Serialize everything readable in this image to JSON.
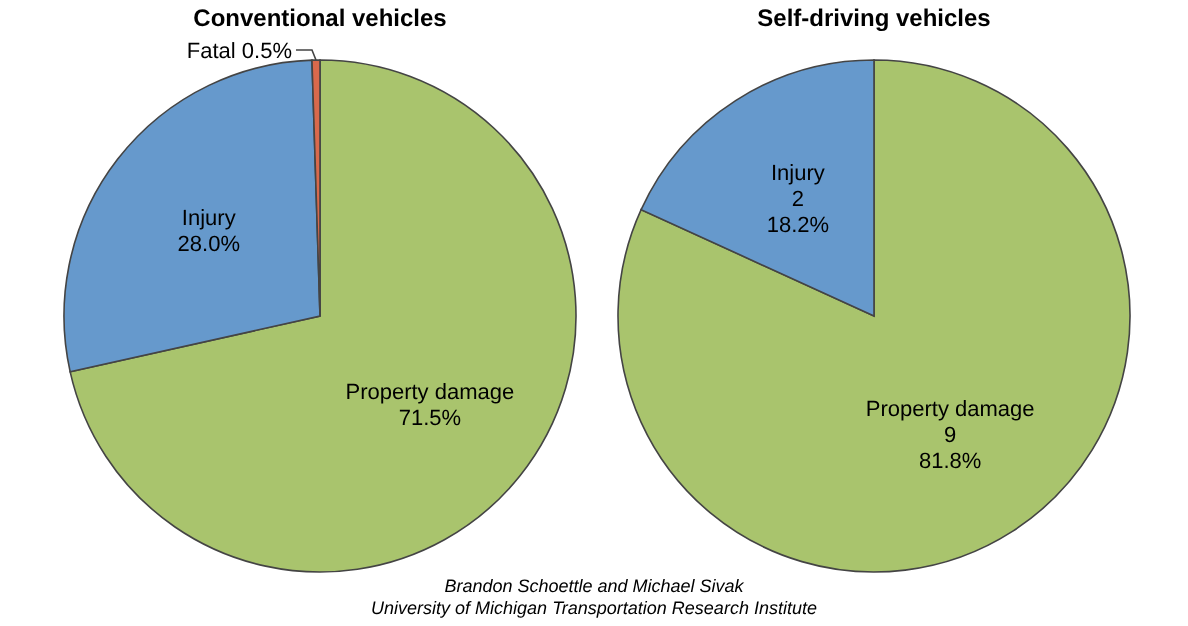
{
  "chart_data": [
    {
      "type": "pie",
      "title": "Conventional vehicles",
      "categories": [
        "Property damage",
        "Injury",
        "Fatal"
      ],
      "values": [
        71.5,
        28.0,
        0.5
      ],
      "colors": [
        "#a9c46d",
        "#6699cc",
        "#d9694c"
      ],
      "value_labels": [
        "71.5%",
        "28.0%",
        "0.5%"
      ],
      "annotations": [
        "Brandon Schoettle and Michael Sivak",
        "University of Michigan Transportation Research Institute"
      ]
    },
    {
      "type": "pie",
      "title": "Self-driving vehicles",
      "categories": [
        "Property damage",
        "Injury"
      ],
      "values": [
        9,
        2
      ],
      "colors": [
        "#a9c46d",
        "#6699cc"
      ],
      "value_labels": [
        "9\n81.8%",
        "2\n18.2%"
      ]
    }
  ]
}
